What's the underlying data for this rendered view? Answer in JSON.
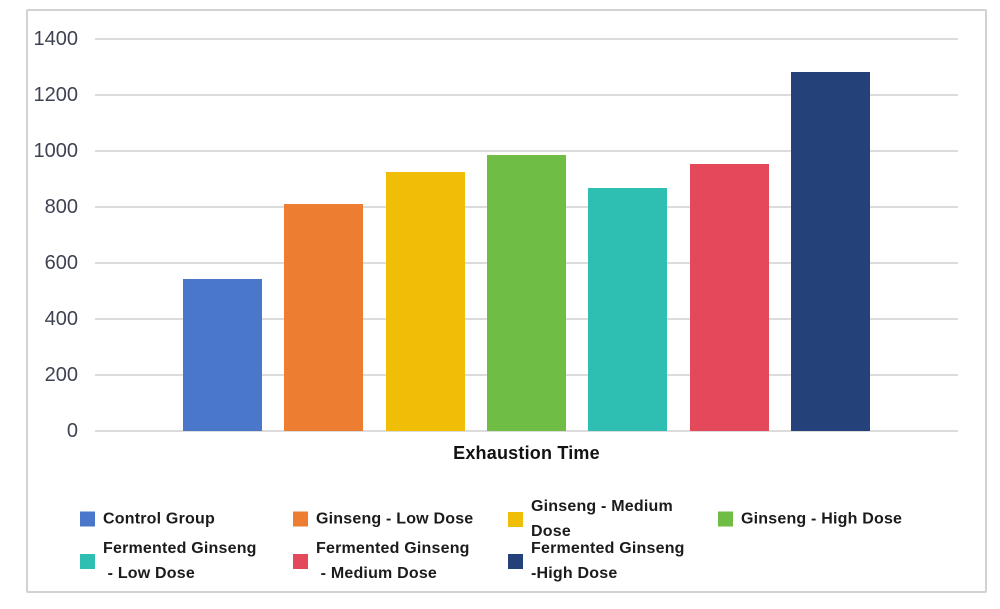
{
  "chart_data": {
    "type": "bar",
    "title": "",
    "xlabel": "Exhaustion Time",
    "ylabel": "",
    "categories": [
      "Control Group",
      "Ginseng - Low Dose",
      "Ginseng - Medium Dose",
      "Ginseng - High Dose",
      "Fermented Ginseng - Low Dose",
      "Fermented Ginseng - Medium Dose",
      "Fermented Ginseng -High Dose"
    ],
    "values": [
      545,
      810,
      925,
      985,
      870,
      955,
      1285
    ],
    "bar_colors": [
      "#4A77C9",
      "#ED7D31",
      "#F0BE06",
      "#6FBD44",
      "#2FBFB2",
      "#E4495B",
      "#24417A"
    ],
    "ylim": [
      0,
      1400
    ],
    "yticks": [
      0,
      200,
      400,
      600,
      800,
      1000,
      1200,
      1400
    ],
    "grid": "horizontal",
    "legend_position": "bottom"
  },
  "legend": {
    "rows": [
      {
        "items": [
          {
            "lines": [
              "Control Group"
            ],
            "color": "#4A77C9"
          },
          {
            "lines": [
              "Ginseng - Low Dose"
            ],
            "color": "#ED7D31"
          },
          {
            "lines": [
              "Ginseng - Medium",
              "Dose"
            ],
            "color": "#F0BE06"
          },
          {
            "lines": [
              "Ginseng - High Dose"
            ],
            "color": "#6FBD44"
          }
        ]
      },
      {
        "items": [
          {
            "lines": [
              "Fermented Ginseng",
              " - Low Dose"
            ],
            "color": "#2FBFB2"
          },
          {
            "lines": [
              "Fermented Ginseng",
              " - Medium Dose"
            ],
            "color": "#E4495B"
          },
          {
            "lines": [
              "Fermented Ginseng",
              "-High Dose"
            ],
            "color": "#24417A"
          }
        ]
      }
    ]
  },
  "colors": {
    "frame_border": "#d2d2d2",
    "gridline": "#dcdcdc",
    "tick_text": "#3e4351",
    "axis_title_text": "#121212",
    "legend_text": "#1b1b1b",
    "background": "#ffffff"
  }
}
